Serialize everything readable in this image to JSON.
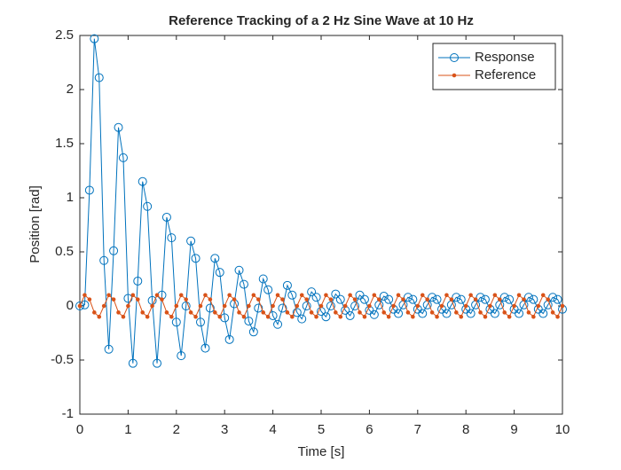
{
  "chart_data": {
    "type": "line",
    "title": "Reference Tracking of a 2 Hz Sine Wave at 10 Hz",
    "x_label": "Time [s]",
    "y_label": "Position [rad]",
    "x": [
      0,
      0.1,
      0.2,
      0.3,
      0.4,
      0.5,
      0.6,
      0.7,
      0.8,
      0.9,
      1,
      1.1,
      1.2,
      1.3,
      1.4,
      1.5,
      1.6,
      1.7,
      1.8,
      1.9,
      2,
      2.1,
      2.2,
      2.3,
      2.4,
      2.5,
      2.6,
      2.7,
      2.8,
      2.9,
      3,
      3.1,
      3.2,
      3.3,
      3.4,
      3.5,
      3.6,
      3.7,
      3.8,
      3.9,
      4,
      4.1,
      4.2,
      4.3,
      4.4,
      4.5,
      4.6,
      4.7,
      4.8,
      4.9,
      5,
      5.1,
      5.2,
      5.3,
      5.4,
      5.5,
      5.6,
      5.7,
      5.8,
      5.9,
      6,
      6.1,
      6.2,
      6.3,
      6.4,
      6.5,
      6.6,
      6.7,
      6.8,
      6.9,
      7,
      7.1,
      7.2,
      7.3,
      7.4,
      7.5,
      7.6,
      7.7,
      7.8,
      7.9,
      8,
      8.1,
      8.2,
      8.3,
      8.4,
      8.5,
      8.6,
      8.7,
      8.8,
      8.9,
      9,
      9.1,
      9.2,
      9.3,
      9.4,
      9.5,
      9.6,
      9.7,
      9.8,
      9.9,
      10
    ],
    "series": [
      {
        "name": "Response",
        "color": "#0072bd",
        "marker": "circle",
        "values": [
          0,
          0.01,
          1.07,
          2.47,
          2.11,
          0.42,
          -0.4,
          0.51,
          1.65,
          1.37,
          0.07,
          -0.53,
          0.23,
          1.15,
          0.92,
          0.05,
          -0.53,
          0.1,
          0.82,
          0.63,
          -0.15,
          -0.46,
          0,
          0.6,
          0.44,
          -0.15,
          -0.39,
          -0.02,
          0.44,
          0.31,
          -0.11,
          -0.31,
          0.02,
          0.33,
          0.2,
          -0.14,
          -0.24,
          -0.02,
          0.25,
          0.15,
          -0.09,
          -0.17,
          -0.02,
          0.19,
          0.1,
          -0.06,
          -0.12,
          0,
          0.13,
          0.08,
          -0.05,
          -0.1,
          0,
          0.11,
          0.06,
          -0.04,
          -0.09,
          0,
          0.1,
          0.06,
          -0.04,
          -0.08,
          0.01,
          0.09,
          0.06,
          -0.03,
          -0.07,
          0.01,
          0.08,
          0.06,
          -0.03,
          -0.07,
          0.01,
          0.08,
          0.06,
          -0.03,
          -0.07,
          0.01,
          0.08,
          0.06,
          -0.03,
          -0.07,
          0.01,
          0.08,
          0.06,
          -0.03,
          -0.07,
          0.01,
          0.08,
          0.06,
          -0.03,
          -0.07,
          0.01,
          0.08,
          0.06,
          -0.03,
          -0.07,
          0.01,
          0.08,
          0.06,
          -0.03
        ]
      },
      {
        "name": "Reference",
        "color": "#d95319",
        "marker": "dot",
        "values": [
          0,
          0.1,
          0.06,
          -0.06,
          -0.1,
          0,
          0.1,
          0.06,
          -0.06,
          -0.1,
          0,
          0.1,
          0.06,
          -0.06,
          -0.1,
          0,
          0.1,
          0.06,
          -0.06,
          -0.1,
          0,
          0.1,
          0.06,
          -0.06,
          -0.1,
          0,
          0.1,
          0.06,
          -0.06,
          -0.1,
          0,
          0.1,
          0.06,
          -0.06,
          -0.1,
          0,
          0.1,
          0.06,
          -0.06,
          -0.1,
          0,
          0.1,
          0.06,
          -0.06,
          -0.1,
          0,
          0.1,
          0.06,
          -0.06,
          -0.1,
          0,
          0.1,
          0.06,
          -0.06,
          -0.1,
          0,
          0.1,
          0.06,
          -0.06,
          -0.1,
          0,
          0.1,
          0.06,
          -0.06,
          -0.1,
          0,
          0.1,
          0.06,
          -0.06,
          -0.1,
          0,
          0.1,
          0.06,
          -0.06,
          -0.1,
          0,
          0.1,
          0.06,
          -0.06,
          -0.1,
          0,
          0.1,
          0.06,
          -0.06,
          -0.1,
          0,
          0.1,
          0.06,
          -0.06,
          -0.1,
          0,
          0.1,
          0.06,
          -0.06,
          -0.1,
          0,
          0.1,
          0.06,
          -0.06,
          -0.1,
          0
        ]
      }
    ],
    "xlim": [
      0,
      10
    ],
    "xticks": [
      0,
      1,
      2,
      3,
      4,
      5,
      6,
      7,
      8,
      9,
      10
    ],
    "ylim": [
      -1,
      2.5
    ],
    "yticks": [
      -1,
      -0.5,
      0,
      0.5,
      1,
      1.5,
      2,
      2.5
    ],
    "grid": false,
    "legend": "northeast"
  }
}
